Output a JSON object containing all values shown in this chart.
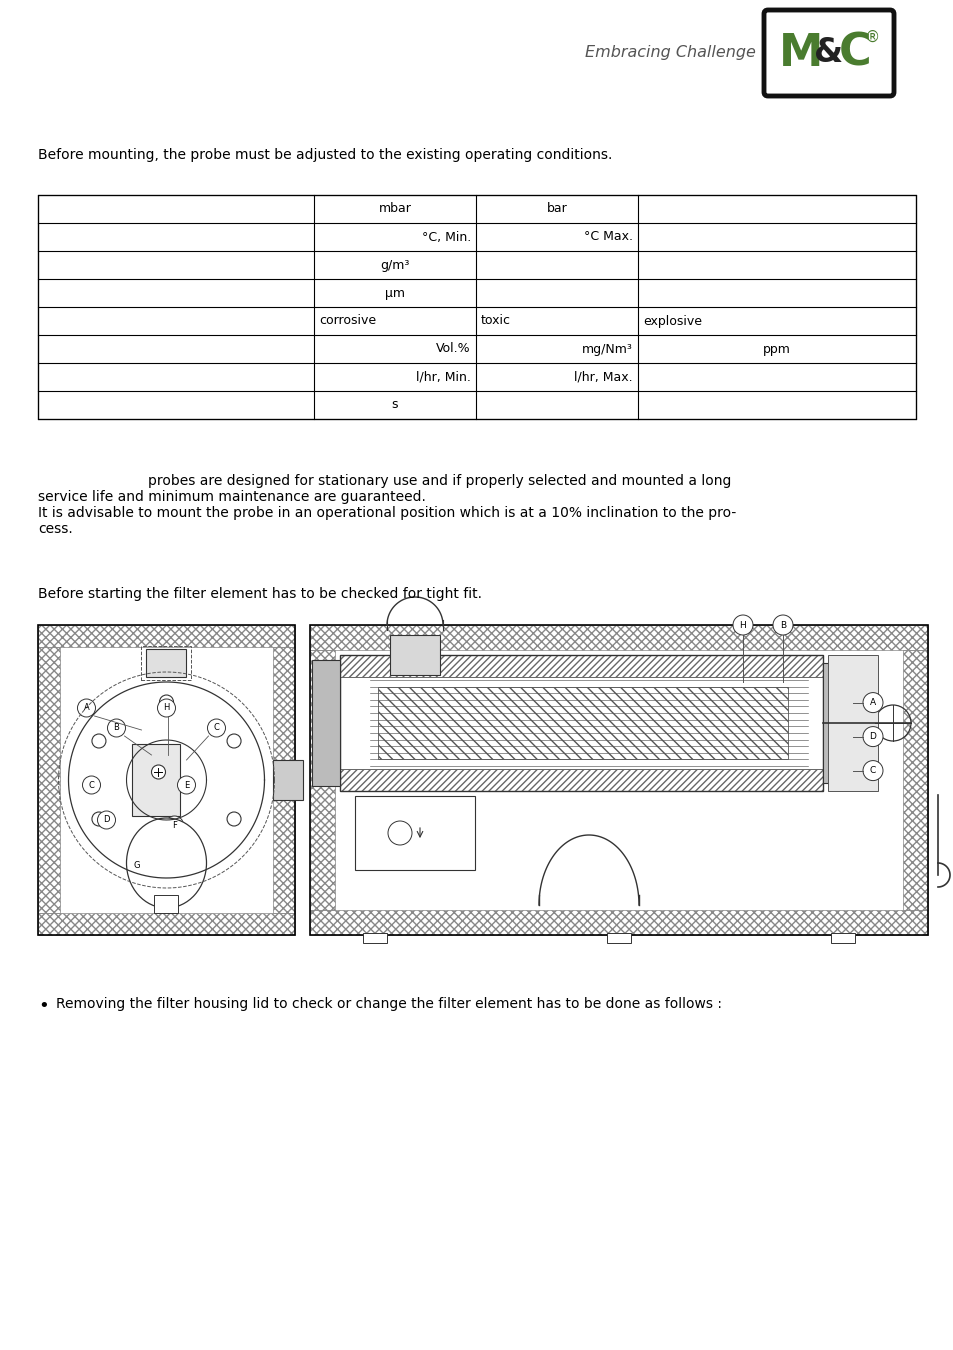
{
  "page_bg": "#ffffff",
  "tagline": "Embracing Challenge",
  "text1": "Before mounting, the probe must be adjusted to the existing operating conditions.",
  "row_data": [
    [
      "",
      "mbar",
      "bar",
      ""
    ],
    [
      "",
      "°C, Min.",
      "°C Max.",
      ""
    ],
    [
      "",
      "g/m³",
      "",
      ""
    ],
    [
      "",
      "μm",
      "",
      ""
    ],
    [
      "",
      "corrosive",
      "toxic",
      "explosive"
    ],
    [
      "",
      "Vol.%",
      "mg/Nm³",
      "ppm"
    ],
    [
      "",
      "l/hr, Min.",
      "l/hr, Max.",
      ""
    ],
    [
      "",
      "s",
      "",
      ""
    ]
  ],
  "text2_line1": "probes are designed for stationary use and if properly selected and mounted a long",
  "text2_line2": "service life and minimum maintenance are guaranteed.",
  "text2_line3": "It is advisable to mount the probe in an operational position which is at a 10% inclination to the pro-",
  "text2_line4": "cess.",
  "text3": "Before starting the filter element has to be checked for tight fit.",
  "bullet_text": "Removing the filter housing lid to check or change the filter element has to be done as follows :",
  "font_body": 10.0,
  "font_table": 9.0,
  "text_color": "#000000",
  "logo_green": "#4a7c2f",
  "logo_dark": "#222222",
  "hatch_color": "#888888",
  "diag_line_color": "#444444"
}
